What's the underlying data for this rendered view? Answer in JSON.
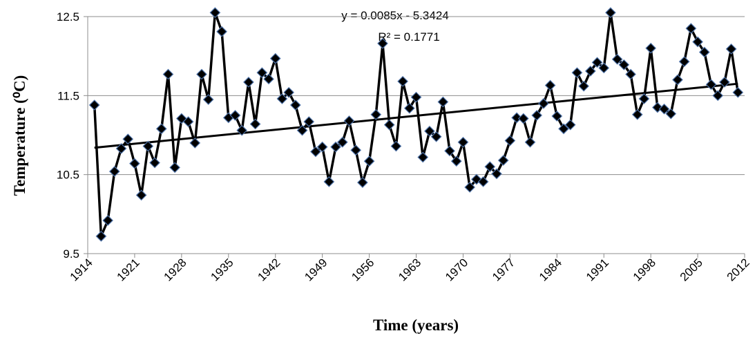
{
  "chart_data": {
    "type": "line",
    "x_label": "Time (years)",
    "y_label": "Temperature (⁰C)",
    "annotations": [
      "y = 0.0085x - 5.3424",
      "R² = 0.1771"
    ],
    "x": [
      1915,
      1916,
      1917,
      1918,
      1919,
      1920,
      1921,
      1922,
      1923,
      1924,
      1925,
      1926,
      1927,
      1928,
      1929,
      1930,
      1931,
      1932,
      1933,
      1934,
      1935,
      1936,
      1937,
      1938,
      1939,
      1940,
      1941,
      1942,
      1943,
      1944,
      1945,
      1946,
      1947,
      1948,
      1949,
      1950,
      1951,
      1952,
      1953,
      1954,
      1955,
      1956,
      1957,
      1958,
      1959,
      1960,
      1961,
      1962,
      1963,
      1964,
      1965,
      1966,
      1967,
      1968,
      1969,
      1970,
      1971,
      1972,
      1973,
      1974,
      1975,
      1976,
      1977,
      1978,
      1979,
      1980,
      1981,
      1982,
      1983,
      1984,
      1985,
      1986,
      1987,
      1988,
      1989,
      1990,
      1991,
      1992,
      1993,
      1994,
      1995,
      1996,
      1997,
      1998,
      1999,
      2000,
      2001,
      2002,
      2003,
      2004,
      2005,
      2006,
      2007,
      2008,
      2009,
      2010,
      2011
    ],
    "series": [
      {
        "color": "#000000",
        "marker_edge": "#4a6fa5",
        "values": [
          11.38,
          9.72,
          9.92,
          10.54,
          10.83,
          10.95,
          10.64,
          10.24,
          10.86,
          10.65,
          11.08,
          11.77,
          10.59,
          11.21,
          11.17,
          10.9,
          11.77,
          11.45,
          12.55,
          12.31,
          11.22,
          11.25,
          11.06,
          11.67,
          11.14,
          11.79,
          11.71,
          11.97,
          11.46,
          11.54,
          11.38,
          11.06,
          11.17,
          10.79,
          10.85,
          10.41,
          10.85,
          10.91,
          11.18,
          10.81,
          10.4,
          10.67,
          11.26,
          12.16,
          11.13,
          10.86,
          11.68,
          11.34,
          11.48,
          10.72,
          11.05,
          10.98,
          11.42,
          10.8,
          10.67,
          10.91,
          10.34,
          10.44,
          10.41,
          10.6,
          10.51,
          10.68,
          10.93,
          11.22,
          11.21,
          10.91,
          11.25,
          11.4,
          11.63,
          11.24,
          11.08,
          11.13,
          11.79,
          11.62,
          11.81,
          11.92,
          11.85,
          12.55,
          11.96,
          11.89,
          11.77,
          11.26,
          11.46,
          12.1,
          11.35,
          11.33,
          11.27,
          11.7,
          11.93,
          12.35,
          12.18,
          12.05,
          11.64,
          11.5,
          11.67,
          12.09,
          11.54
        ]
      }
    ],
    "trendline": {
      "x": [
        1915,
        2011
      ],
      "values": [
        10.84,
        11.65
      ],
      "color": "#000000"
    },
    "xlim": [
      1914,
      2012
    ],
    "xticks": [
      1914,
      1921,
      1928,
      1935,
      1942,
      1949,
      1956,
      1963,
      1970,
      1977,
      1984,
      1991,
      1998,
      2005,
      2012
    ],
    "ylim": [
      9.5,
      12.5
    ],
    "yticks": [
      9.5,
      10.5,
      11.5,
      12.5
    ],
    "grid": true
  }
}
